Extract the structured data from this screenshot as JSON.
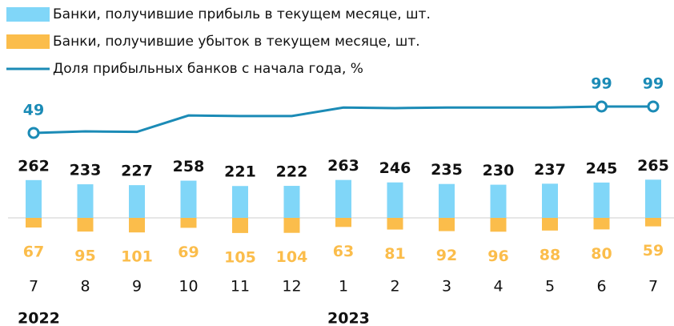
{
  "chart_data": {
    "type": "bar_line",
    "categories": [
      "7",
      "8",
      "9",
      "10",
      "11",
      "12",
      "1",
      "2",
      "3",
      "4",
      "5",
      "6",
      "7"
    ],
    "years": [
      "2022",
      "2023"
    ],
    "series": [
      {
        "name": "Банки, получившие прибыль в текущем месяце, шт.",
        "color": "#80d6f8",
        "type": "bar",
        "values": [
          262,
          233,
          227,
          258,
          221,
          222,
          263,
          246,
          235,
          230,
          237,
          245,
          265
        ]
      },
      {
        "name": "Банки, получившие убыток в текущем месяце, шт.",
        "color": "#fbbd4b",
        "type": "bar",
        "values": [
          67,
          95,
          101,
          69,
          105,
          104,
          63,
          81,
          92,
          96,
          88,
          80,
          59
        ]
      },
      {
        "name": "Доля прибыльных банков с начала года, %",
        "color": "#1b8bb6",
        "type": "line",
        "values": [
          49,
          52,
          51,
          82,
          81,
          81,
          97,
          96,
          97,
          97,
          97,
          99,
          99
        ],
        "value_labels": [
          "49",
          null,
          null,
          null,
          null,
          null,
          null,
          null,
          null,
          null,
          null,
          "99",
          "99"
        ]
      }
    ]
  }
}
